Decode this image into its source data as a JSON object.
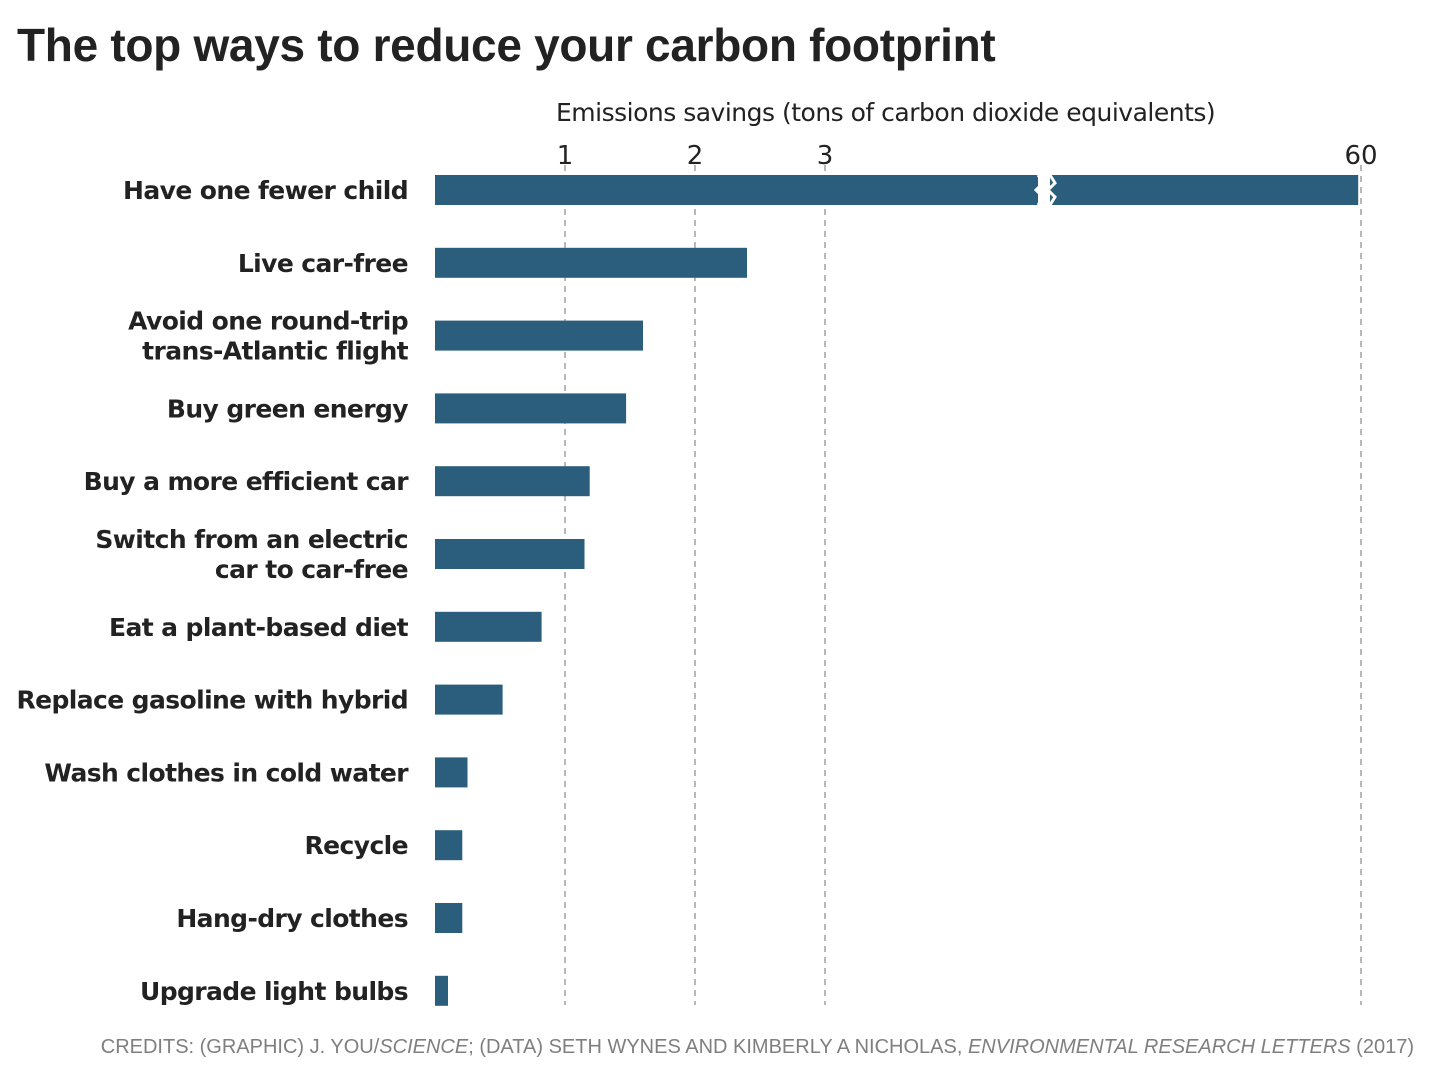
{
  "chart_data": {
    "type": "bar",
    "orientation": "horizontal",
    "title": "The top ways to reduce your carbon footprint",
    "xlabel": "Emissions savings (tons of carbon dioxide equivalents)",
    "ylabel": "",
    "xticks": [
      "1",
      "2",
      "3",
      "60"
    ],
    "axis_break": "between 3 and 60",
    "grid": "dashed vertical lines at ticks",
    "bar_color": "#2b5d7d",
    "categories": [
      "Have one fewer child",
      "Live car-free",
      "Avoid one round-trip trans-Atlantic flight",
      "Buy green energy",
      "Buy a more efficient car",
      "Switch from an electric car to car-free",
      "Eat a plant-based diet",
      "Replace gasoline with hybrid",
      "Wash clothes in cold water",
      "Recycle",
      "Hang-dry clothes",
      "Upgrade light bulbs"
    ],
    "label_lines": [
      [
        "Have one fewer child"
      ],
      [
        "Live car-free"
      ],
      [
        "Avoid one round-trip",
        "trans-Atlantic flight"
      ],
      [
        "Buy green energy"
      ],
      [
        "Buy a more efficient car"
      ],
      [
        "Switch from an electric",
        "car to car-free"
      ],
      [
        "Eat a plant-based diet"
      ],
      [
        "Replace gasoline with hybrid"
      ],
      [
        "Wash clothes in cold water"
      ],
      [
        "Recycle"
      ],
      [
        "Hang-dry clothes"
      ],
      [
        "Upgrade light bulbs"
      ]
    ],
    "values": [
      58.6,
      2.4,
      1.6,
      1.47,
      1.19,
      1.15,
      0.82,
      0.52,
      0.25,
      0.21,
      0.21,
      0.1
    ]
  },
  "credits": {
    "part1": "CREDITS: (GRAPHIC) J. YOU/",
    "part2": "SCIENCE",
    "part3": "; (DATA) SETH WYNES AND KIMBERLY A NICHOLAS, ",
    "part4": "ENVIRONMENTAL RESEARCH LETTERS",
    "part5": " (2017)"
  }
}
